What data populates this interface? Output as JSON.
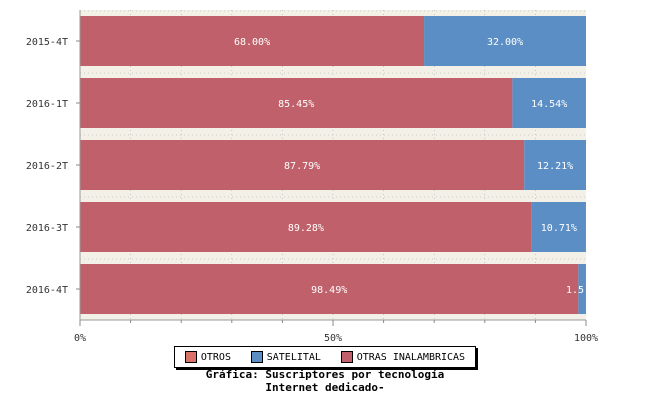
{
  "chart_data": {
    "type": "bar",
    "orientation": "horizontal",
    "stacked": true,
    "categories": [
      "2015-4T",
      "2016-1T",
      "2016-2T",
      "2016-3T",
      "2016-4T"
    ],
    "series": [
      {
        "name": "OTROS",
        "values": [
          0,
          0,
          0,
          0,
          0
        ],
        "color": "#d9736a"
      },
      {
        "name": "SATELITAL",
        "values": [
          32.0,
          14.54,
          12.21,
          10.71,
          1.5
        ],
        "color": "#5b8ec4"
      },
      {
        "name": "OTRAS INALAMBRICAS",
        "values": [
          68.0,
          85.45,
          87.79,
          89.28,
          98.49
        ],
        "color": "#c0606a"
      }
    ],
    "data_labels": {
      "OTRAS INALAMBRICAS": [
        "68.00%",
        "85.45%",
        "87.79%",
        "89.28%",
        "98.49%"
      ],
      "SATELITAL": [
        "32.00%",
        "14.54%",
        "12.21%",
        "10.71%",
        "1.5"
      ]
    },
    "x_ticks": [
      "0%",
      "50%",
      "100%"
    ],
    "xlim": [
      0,
      100
    ],
    "legend_placement": "bottom",
    "title_lines": [
      "Gráfica: Suscriptores por tecnología",
      "Internet dedicado-"
    ],
    "colors": {
      "band": "#f3f1e7",
      "grid": "#aaaaaa"
    }
  }
}
